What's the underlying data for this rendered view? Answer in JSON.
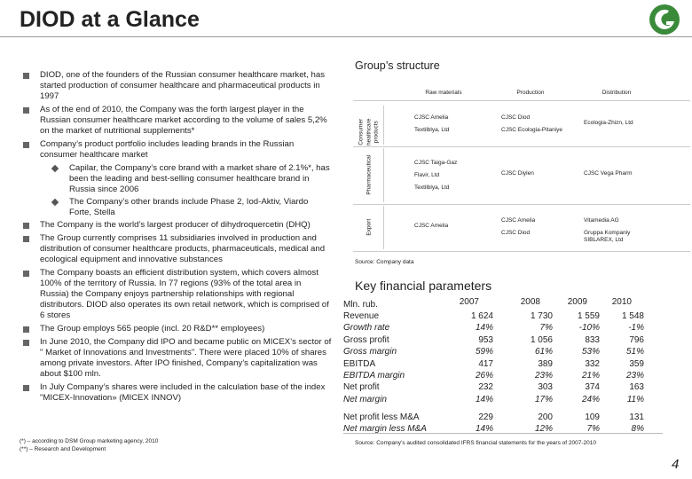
{
  "header": {
    "title": "DIOD at a Glance"
  },
  "bullets": [
    {
      "text": "DIOD, one of the founders of the Russian consumer healthcare market, has started production of consumer healthcare and pharmaceutical products in 1997"
    },
    {
      "text": "As of the end of 2010, the Company was the forth largest player in the Russian consumer healthcare market according to the volume of sales 5,2% on the market of nutritional supplements*"
    },
    {
      "text": "Company’s product portfolio includes leading brands in the Russian consumer healthcare market",
      "sub": [
        "Capilar, the Company’s core brand with a market share of 2.1%*, has been the leading and best-selling consumer healthcare brand in Russia since 2006",
        "The Company’s other brands include Phase 2, Iod-Aktiv, Viardo Forte, Stella"
      ]
    },
    {
      "text": "The Company is the world’s largest producer of dihydroquercetin (DHQ)"
    },
    {
      "text": "The Group currently comprises 11 subsidiaries involved in production and distribution of consumer healthcare products, pharmaceuticals, medical and ecological equipment and innovative substances"
    },
    {
      "text": "The Company boasts an efficient distribution system, which covers almost 100% of the territory of Russia. In 77 regions (93% of the total area in Russia) the Company enjoys partnership relationships with regional distributors. DIOD also operates its own retail network, which is comprised of 6 stores"
    },
    {
      "text": "The Group employs 565 people (incl. 20 R&D** employees)"
    },
    {
      "text": "In June 2010, the Company did IPO and became public on MICEX’s sector of \" Market of Innovations and Investments\". There were placed 10% of shares among private investors. After IPO finished, Company’s capitalization was about $100 mln."
    },
    {
      "text": "In July Company’s shares were included in the calculation base of the index \"MICEX-Innovation» (MICEX INNOV)"
    }
  ],
  "structure": {
    "title": "Group’s structure",
    "columns": [
      "Raw materials",
      "Production",
      "Distribution"
    ],
    "rows": [
      {
        "label": "Consumer healthcare products",
        "cells": [
          [
            "CJSC Amelia",
            "Textilblya, Ltd"
          ],
          [
            "CJSC Diod",
            "CJSC Ecologia-Pitaniye"
          ],
          [
            "Ecologia-Zhizn, Ltd"
          ]
        ]
      },
      {
        "label": "Pharmaceutical",
        "cells": [
          [
            "CJSC Taiga-Gaz",
            "Flavir, Ltd",
            "Textilblya, Ltd"
          ],
          [
            "CJSC Diylen"
          ],
          [
            "CJSC Vega Pharm"
          ]
        ]
      },
      {
        "label": "Export",
        "cells": [
          [
            "CJSC Amelia"
          ],
          [
            "CJSC Amelia",
            "CJSC Diod"
          ],
          [
            "Vitamedia AG",
            "Gruppa Kompaniy SIBLAREX, Ltd"
          ]
        ]
      }
    ],
    "source": "Source: Company data"
  },
  "financials": {
    "title": "Key financial parameters",
    "unit": "Mln. rub.",
    "years": [
      "2007",
      "2008",
      "2009",
      "2010"
    ],
    "rows": [
      {
        "label": "Revenue",
        "values": [
          "1 624",
          "1 730",
          "1 559",
          "1 548"
        ]
      },
      {
        "label": "Growth rate",
        "values": [
          "14%",
          "7%",
          "-10%",
          "-1%"
        ]
      },
      {
        "label": "Gross profit",
        "values": [
          "953",
          "1 056",
          "833",
          "796"
        ]
      },
      {
        "label": "Gross margin",
        "values": [
          "59%",
          "61%",
          "53%",
          "51%"
        ]
      },
      {
        "label": "EBITDA",
        "values": [
          "417",
          "389",
          "332",
          "359"
        ]
      },
      {
        "label": "EBITDA margin",
        "values": [
          "26%",
          "23%",
          "21%",
          "23%"
        ]
      },
      {
        "label": "Net profit",
        "values": [
          "232",
          "303",
          "374",
          "163"
        ]
      },
      {
        "label": "Net margin",
        "values": [
          "14%",
          "17%",
          "24%",
          "11%"
        ]
      }
    ],
    "rows2": [
      {
        "label": "Net profit less M&A",
        "values": [
          "229",
          "200",
          "109",
          "131"
        ]
      },
      {
        "label": "Net margin less M&A",
        "values": [
          "14%",
          "12%",
          "7%",
          "8%"
        ]
      }
    ],
    "source": "Source: Company’s audited consolidated IFRS financial statements for the years of 2007-2010"
  },
  "footnotes": [
    "(*) – according to DSM Group marketing agency, 2010",
    "(**) – Research and Development"
  ],
  "page_number": "4"
}
